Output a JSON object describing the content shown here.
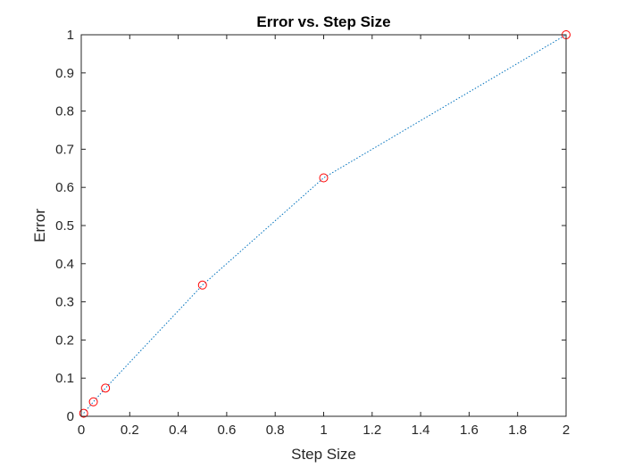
{
  "chart_data": {
    "type": "line",
    "title": "Error vs. Step Size",
    "xlabel": "Step Size",
    "ylabel": "Error",
    "xlim": [
      0,
      2
    ],
    "ylim": [
      0,
      1
    ],
    "xticks": [
      0,
      0.2,
      0.4,
      0.6,
      0.8,
      1,
      1.2,
      1.4,
      1.6,
      1.8,
      2
    ],
    "yticks": [
      0,
      0.1,
      0.2,
      0.3,
      0.4,
      0.5,
      0.6,
      0.7,
      0.8,
      0.9,
      1
    ],
    "xtick_labels": [
      "0",
      "0.2",
      "0.4",
      "0.6",
      "0.8",
      "1",
      "1.2",
      "1.4",
      "1.6",
      "1.8",
      "2"
    ],
    "ytick_labels": [
      "0",
      "0.1",
      "0.2",
      "0.3",
      "0.4",
      "0.5",
      "0.6",
      "0.7",
      "0.8",
      "0.9",
      "1"
    ],
    "grid": false,
    "legend": "none",
    "series": [
      {
        "x": [
          0.01,
          0.05,
          0.1,
          0.5,
          1,
          2
        ],
        "y": [
          0.008,
          0.038,
          0.074,
          0.344,
          0.625,
          1.0
        ],
        "line_style": "dotted",
        "line_color": "#0072BD",
        "marker": "circle",
        "marker_color": "#FF0000"
      }
    ]
  }
}
